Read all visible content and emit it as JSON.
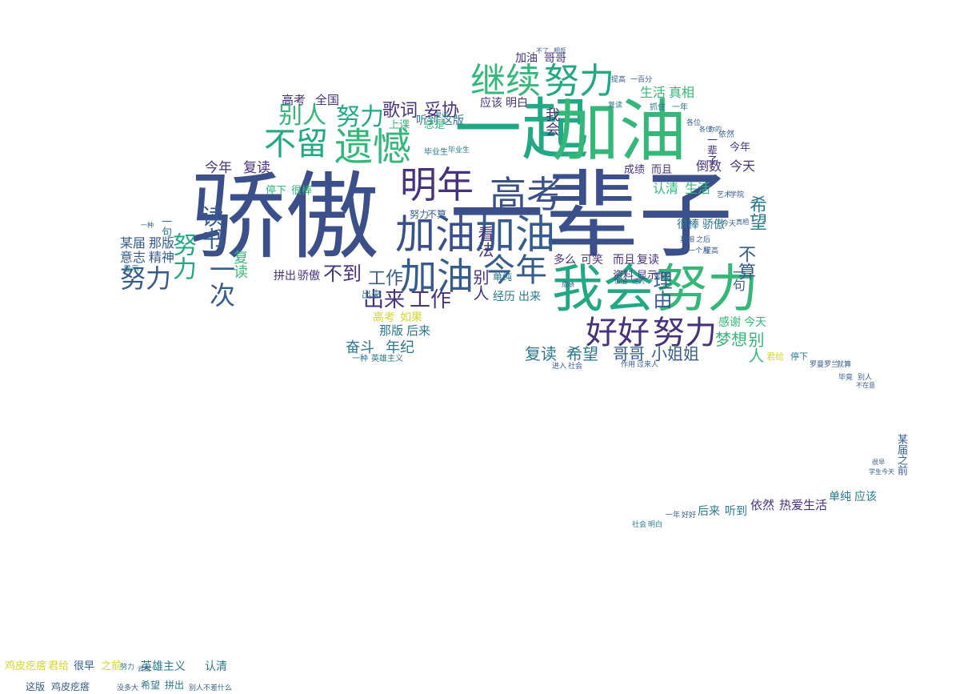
{
  "palette": {
    "navy": "#3b4f8a",
    "indigo": "#46327e",
    "teal": "#2a788e",
    "green": "#22a884",
    "lime": "#7ad151",
    "yellow": "#d6d52a",
    "slate": "#365c8d",
    "emerald": "#35b779"
  },
  "words": [
    {
      "t": "骄傲",
      "c": "navy"
    },
    {
      "t": "一辈子",
      "c": "navy"
    },
    {
      "t": "一起",
      "c": "green"
    },
    {
      "t": "加油",
      "c": "emerald"
    },
    {
      "t": "继续",
      "c": "emerald"
    },
    {
      "t": "努力",
      "c": "green"
    },
    {
      "t": "我会",
      "c": "green"
    },
    {
      "t": "努力",
      "c": "emerald"
    },
    {
      "t": "遗憾",
      "c": "emerald"
    },
    {
      "t": "不留",
      "c": "green"
    },
    {
      "t": "别人",
      "c": "emerald"
    },
    {
      "t": "努力",
      "c": "green"
    },
    {
      "t": "明年",
      "c": "indigo"
    },
    {
      "t": "高考",
      "c": "navy"
    },
    {
      "t": "加油",
      "c": "navy"
    },
    {
      "t": "加油",
      "c": "slate"
    },
    {
      "t": "加油",
      "c": "slate"
    },
    {
      "t": "今年",
      "c": "slate"
    },
    {
      "t": "好好",
      "c": "indigo"
    },
    {
      "t": "努力",
      "c": "indigo"
    },
    {
      "t": "出来",
      "c": "indigo"
    },
    {
      "t": "工作",
      "c": "indigo"
    },
    {
      "t": "不到",
      "c": "indigo"
    },
    {
      "t": "工作",
      "c": "slate"
    },
    {
      "t": "努力",
      "c": "slate"
    },
    {
      "t": "读书",
      "c": "slate"
    },
    {
      "t": "一次",
      "c": "slate"
    },
    {
      "t": "努力",
      "c": "green"
    },
    {
      "t": "歌词",
      "c": "indigo"
    },
    {
      "t": "妥协",
      "c": "indigo"
    },
    {
      "t": "高考",
      "c": "indigo"
    },
    {
      "t": "全国",
      "c": "indigo"
    },
    {
      "t": "今年",
      "c": "indigo"
    },
    {
      "t": "复读",
      "c": "indigo"
    },
    {
      "t": "某届",
      "c": "slate"
    },
    {
      "t": "那版",
      "c": "slate"
    },
    {
      "t": "意志",
      "c": "slate"
    },
    {
      "t": "精神",
      "c": "slate"
    },
    {
      "t": "复读",
      "c": "emerald"
    },
    {
      "t": "别人",
      "c": "indigo"
    },
    {
      "t": "看法",
      "c": "indigo"
    },
    {
      "t": "拼出",
      "c": "indigo"
    },
    {
      "t": "骄傲",
      "c": "indigo"
    },
    {
      "t": "奋斗",
      "c": "teal"
    },
    {
      "t": "年纪",
      "c": "teal"
    },
    {
      "t": "那版",
      "c": "teal"
    },
    {
      "t": "后来",
      "c": "teal"
    },
    {
      "t": "复读",
      "c": "teal"
    },
    {
      "t": "希望",
      "c": "teal"
    },
    {
      "t": "哥哥",
      "c": "slate"
    },
    {
      "t": "小姐姐",
      "c": "slate"
    },
    {
      "t": "梦想",
      "c": "emerald"
    },
    {
      "t": "别人",
      "c": "emerald"
    },
    {
      "t": "感谢",
      "c": "emerald"
    },
    {
      "t": "今天",
      "c": "emerald"
    },
    {
      "t": "理由",
      "c": "slate"
    },
    {
      "t": "不算",
      "c": "slate"
    },
    {
      "t": "希望",
      "c": "teal"
    },
    {
      "t": "多么",
      "c": "indigo"
    },
    {
      "t": "可笑",
      "c": "indigo"
    },
    {
      "t": "而且",
      "c": "indigo"
    },
    {
      "t": "复读",
      "c": "indigo"
    },
    {
      "t": "倒数",
      "c": "indigo"
    },
    {
      "t": "今天",
      "c": "indigo"
    },
    {
      "t": "今年",
      "c": "indigo"
    },
    {
      "t": "成绩",
      "c": "indigo"
    },
    {
      "t": "而且",
      "c": "indigo"
    },
    {
      "t": "认清",
      "c": "emerald"
    },
    {
      "t": "生活",
      "c": "emerald"
    },
    {
      "t": "很棒",
      "c": "teal"
    },
    {
      "t": "骄傲",
      "c": "teal"
    },
    {
      "t": "生活",
      "c": "emerald"
    },
    {
      "t": "真相",
      "c": "emerald"
    },
    {
      "t": "应该",
      "c": "indigo"
    },
    {
      "t": "明白",
      "c": "indigo"
    },
    {
      "t": "加油",
      "c": "indigo"
    },
    {
      "t": "哥哥",
      "c": "indigo"
    },
    {
      "t": "听到",
      "c": "teal"
    },
    {
      "t": "这版",
      "c": "teal"
    },
    {
      "t": "上课",
      "c": "emerald"
    },
    {
      "t": "总是",
      "c": "emerald"
    },
    {
      "t": "经历",
      "c": "teal"
    },
    {
      "t": "出来",
      "c": "teal"
    },
    {
      "t": "高考",
      "c": "yellow"
    },
    {
      "t": "如果",
      "c": "yellow"
    },
    {
      "t": "依然",
      "c": "indigo"
    },
    {
      "t": "热爱生活",
      "c": "indigo"
    },
    {
      "t": "单纯",
      "c": "teal"
    },
    {
      "t": "应该",
      "c": "teal"
    },
    {
      "t": "后来",
      "c": "teal"
    },
    {
      "t": "听到",
      "c": "teal"
    },
    {
      "t": "君给",
      "c": "yellow"
    },
    {
      "t": "停下",
      "c": "teal"
    },
    {
      "t": "鸡皮疙瘩",
      "c": "yellow"
    },
    {
      "t": "君给",
      "c": "yellow"
    },
    {
      "t": "很早",
      "c": "slate"
    },
    {
      "t": "之前",
      "c": "yellow"
    },
    {
      "t": "英雄主义",
      "c": "teal"
    },
    {
      "t": "认清",
      "c": "teal"
    },
    {
      "t": "这版",
      "c": "slate"
    },
    {
      "t": "鸡皮疙瘩",
      "c": "slate"
    },
    {
      "t": "希望",
      "c": "teal"
    },
    {
      "t": "拼出",
      "c": "teal"
    },
    {
      "t": "某届",
      "c": "slate"
    },
    {
      "t": "之前",
      "c": "slate"
    },
    {
      "t": "一种",
      "c": "teal"
    },
    {
      "t": "英雄主义",
      "c": "teal"
    },
    {
      "t": "资料",
      "c": "indigo"
    },
    {
      "t": "显示",
      "c": "indigo"
    },
    {
      "t": "一句",
      "c": "slate"
    },
    {
      "t": "停下",
      "c": "emerald"
    },
    {
      "t": "很棒",
      "c": "emerald"
    },
    {
      "t": "显示",
      "c": "teal"
    },
    {
      "t": "一句",
      "c": "teal"
    },
    {
      "t": "我会",
      "c": "indigo"
    },
    {
      "t": "一辈子",
      "c": "indigo"
    },
    {
      "t": "出来",
      "c": "teal"
    },
    {
      "t": "单纯",
      "c": "teal"
    },
    {
      "t": "努力",
      "c": "slate"
    },
    {
      "t": "不算",
      "c": "slate"
    },
    {
      "t": "毕业生",
      "c": "teal"
    },
    {
      "t": "复读",
      "c": "teal"
    },
    {
      "t": "抓住",
      "c": "teal"
    },
    {
      "t": "一年",
      "c": "teal"
    },
    {
      "t": "提高",
      "c": "slate"
    },
    {
      "t": "一百分",
      "c": "slate"
    },
    {
      "t": "今天",
      "c": "slate"
    },
    {
      "t": "真相",
      "c": "slate"
    },
    {
      "t": "之后",
      "c": "slate"
    },
    {
      "t": "一个月",
      "c": "slate"
    },
    {
      "t": "提高",
      "c": "slate"
    },
    {
      "t": "进入",
      "c": "slate"
    },
    {
      "t": "社会",
      "c": "slate"
    },
    {
      "t": "一年",
      "c": "slate"
    },
    {
      "t": "好好",
      "c": "slate"
    },
    {
      "t": "社会",
      "c": "teal"
    },
    {
      "t": "明白",
      "c": "teal"
    },
    {
      "t": "罗曼罗兰",
      "c": "slate"
    },
    {
      "t": "就算",
      "c": "slate"
    },
    {
      "t": "毕竟",
      "c": "slate"
    },
    {
      "t": "别人",
      "c": "slate"
    },
    {
      "t": "不在意",
      "c": "slate"
    },
    {
      "t": "努力",
      "c": "teal"
    },
    {
      "t": "没多大",
      "c": "slate"
    },
    {
      "t": "云南",
      "c": "slate"
    },
    {
      "t": "别人",
      "c": "slate"
    },
    {
      "t": "不差什么",
      "c": "slate"
    },
    {
      "t": "作用",
      "c": "slate"
    },
    {
      "t": "过来人",
      "c": "slate"
    },
    {
      "t": "一百分",
      "c": "slate"
    },
    {
      "t": "各位",
      "c": "slate"
    },
    {
      "t": "学生",
      "c": "slate"
    },
    {
      "t": "今天",
      "c": "slate"
    },
    {
      "t": "很早",
      "c": "slate"
    },
    {
      "t": "学院",
      "c": "slate"
    },
    {
      "t": "艺术",
      "c": "slate"
    },
    {
      "t": "真相",
      "c": "slate"
    },
    {
      "t": "你的",
      "c": "slate"
    },
    {
      "t": "依然",
      "c": "slate"
    },
    {
      "t": "各位",
      "c": "slate"
    },
    {
      "t": "毕业生",
      "c": "teal"
    },
    {
      "t": "复读",
      "c": "teal"
    },
    {
      "t": "一种",
      "c": "slate"
    },
    {
      "t": "成绩",
      "c": "slate"
    },
    {
      "t": "加油",
      "c": "slate"
    },
    {
      "t": "进入",
      "c": "slate"
    },
    {
      "t": "不了",
      "c": "slate"
    },
    {
      "t": "相反",
      "c": "slate"
    }
  ]
}
